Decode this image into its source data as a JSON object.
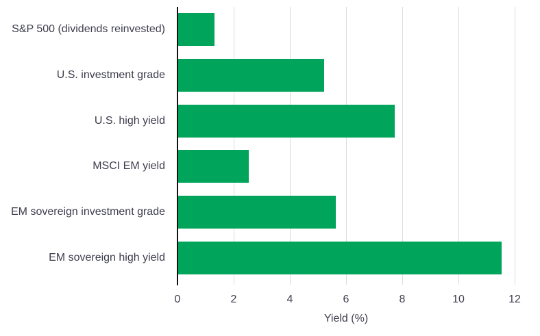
{
  "chart_data": {
    "type": "bar",
    "orientation": "horizontal",
    "title": "",
    "xlabel": "Yield (%)",
    "ylabel": "",
    "categories": [
      "S&P 500 (dividends reinvested)",
      "U.S. investment grade",
      "U.S. high yield",
      "MSCI EM yield",
      "EM sovereign investment grade",
      "EM sovereign high yield"
    ],
    "values": [
      1.3,
      5.2,
      7.7,
      2.5,
      5.6,
      11.5
    ],
    "x_ticks": [
      0,
      2,
      4,
      6,
      8,
      10,
      12
    ],
    "xlim": [
      0,
      12
    ],
    "grid": "vertical-gridlines-on",
    "legend": "none",
    "bar_color": "#00a45a",
    "axis_color": "#111111",
    "gridline_color": "#dcdce0",
    "text_color": "#3d3d4e",
    "background_color": "#ffffff"
  }
}
